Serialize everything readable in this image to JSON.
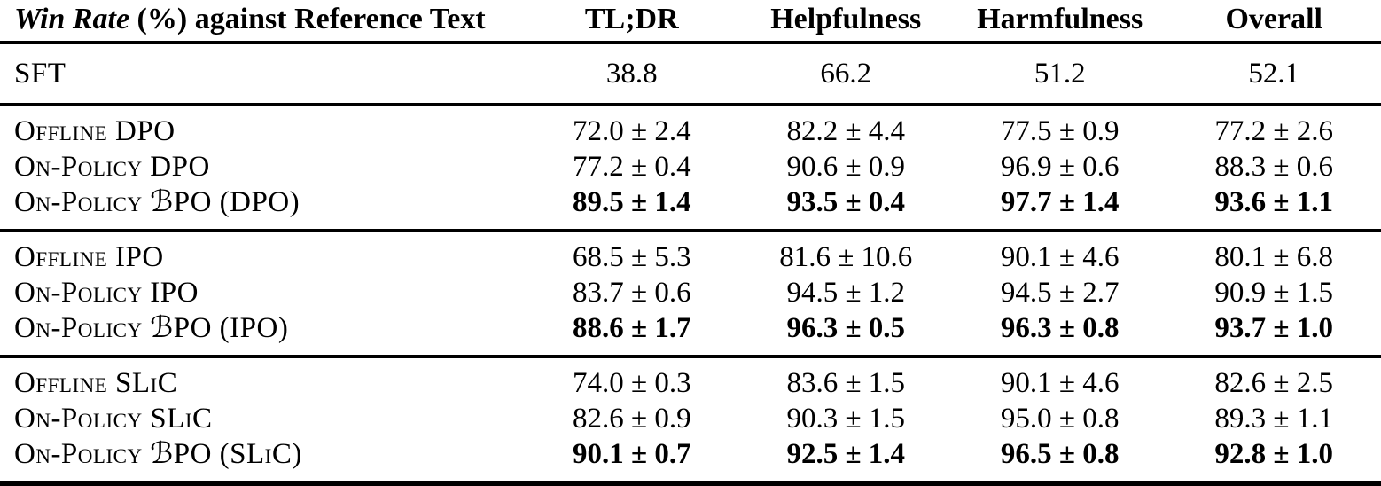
{
  "header": {
    "title_italic": "Win Rate",
    "title_rest": " (%) against Reference Text",
    "columns": [
      "TL;DR",
      "Helpfulness",
      "Harmfulness",
      "Overall"
    ]
  },
  "baseline": {
    "label": "SFT",
    "values": [
      "38.8",
      "66.2",
      "51.2",
      "52.1"
    ]
  },
  "groups": [
    {
      "rows": [
        {
          "label": "Offline DPO",
          "bold": false,
          "values": [
            "72.0 ± 2.4",
            "82.2 ± 4.4",
            "77.5 ± 0.9",
            "77.2 ± 2.6"
          ]
        },
        {
          "label": "On-Policy DPO",
          "bold": false,
          "values": [
            "77.2 ± 0.4",
            "90.6 ± 0.9",
            "96.9 ± 0.6",
            "88.3 ± 0.6"
          ]
        },
        {
          "label": "On-Policy ℬPO (DPO)",
          "bold": true,
          "values": [
            "89.5 ± 1.4",
            "93.5 ± 0.4",
            "97.7 ± 1.4",
            "93.6 ± 1.1"
          ]
        }
      ]
    },
    {
      "rows": [
        {
          "label": "Offline IPO",
          "bold": false,
          "values": [
            "68.5 ± 5.3",
            "81.6 ± 10.6",
            "90.1 ± 4.6",
            "80.1 ± 6.8"
          ]
        },
        {
          "label": "On-Policy IPO",
          "bold": false,
          "values": [
            "83.7 ± 0.6",
            "94.5 ± 1.2",
            "94.5 ± 2.7",
            "90.9 ± 1.5"
          ]
        },
        {
          "label": "On-Policy ℬPO (IPO)",
          "bold": true,
          "values": [
            "88.6 ± 1.7",
            "96.3 ± 0.5",
            "96.3 ± 0.8",
            "93.7 ± 1.0"
          ]
        }
      ]
    },
    {
      "rows": [
        {
          "label": "Offline SLiC",
          "bold": false,
          "values": [
            "74.0 ± 0.3",
            "83.6 ± 1.5",
            "90.1 ± 4.6",
            "82.6 ± 2.5"
          ]
        },
        {
          "label": "On-Policy SLiC",
          "bold": false,
          "values": [
            "82.6 ± 0.9",
            "90.3 ± 1.5",
            "95.0 ± 0.8",
            "89.3 ± 1.1"
          ]
        },
        {
          "label": "On-Policy ℬPO (SLiC)",
          "bold": true,
          "values": [
            "90.1 ± 0.7",
            "92.5 ± 1.4",
            "96.5 ± 0.8",
            "92.8 ± 1.0"
          ]
        }
      ]
    }
  ],
  "colors": {
    "text": "#000000",
    "background": "#ffffff",
    "rule": "#000000"
  }
}
